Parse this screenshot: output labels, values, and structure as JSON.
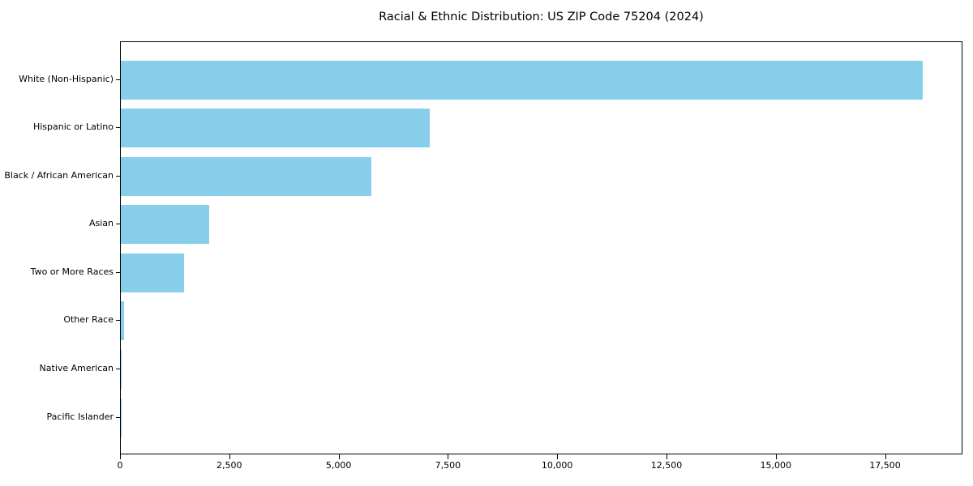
{
  "chart_data": {
    "type": "bar",
    "orientation": "horizontal",
    "title": "Racial & Ethnic Distribution: US ZIP Code 75204 (2024)",
    "categories": [
      "White (Non-Hispanic)",
      "Hispanic or Latino",
      "Black / African American",
      "Asian",
      "Two or More Races",
      "Other Race",
      "Native American",
      "Pacific Islander"
    ],
    "values": [
      18350,
      7070,
      5730,
      2020,
      1450,
      75,
      20,
      5
    ],
    "xlabel": "",
    "ylabel": "",
    "xlim": [
      0,
      19270
    ],
    "x_ticks": [
      0,
      2500,
      5000,
      7500,
      10000,
      12500,
      15000,
      17500
    ],
    "x_tick_labels": [
      "0",
      "2,500",
      "5,000",
      "7,500",
      "10,000",
      "12,500",
      "15,000",
      "17,500"
    ],
    "bar_color": "#87CEEB",
    "background_color": "#FFFFFF",
    "axis_color": "#000000",
    "grid": false,
    "legend": null
  }
}
